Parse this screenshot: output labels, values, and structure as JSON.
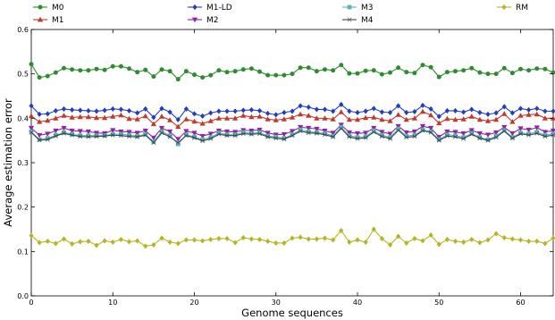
{
  "chart_data": {
    "type": "line",
    "xlabel": "Genome sequences",
    "ylabel": "Average estimation error",
    "xlim": [
      0,
      64
    ],
    "ylim": [
      0.0,
      0.6
    ],
    "xticks": [
      "0",
      "10",
      "20",
      "30",
      "40",
      "50",
      "60"
    ],
    "yticks": [
      "0.0",
      "0.1",
      "0.2",
      "0.3",
      "0.4",
      "0.5",
      "0.6"
    ],
    "legend": "top",
    "x": [
      0,
      1,
      2,
      3,
      4,
      5,
      6,
      7,
      8,
      9,
      10,
      11,
      12,
      13,
      14,
      15,
      16,
      17,
      18,
      19,
      20,
      21,
      22,
      23,
      24,
      25,
      26,
      27,
      28,
      29,
      30,
      31,
      32,
      33,
      34,
      35,
      36,
      37,
      38,
      39,
      40,
      41,
      42,
      43,
      44,
      45,
      46,
      47,
      48,
      49,
      50,
      51,
      52,
      53,
      54,
      55,
      56,
      57,
      58,
      59,
      60,
      61,
      62,
      63,
      64
    ],
    "series": [
      {
        "name": "M0",
        "color": "#2e8b2e",
        "marker": "circle",
        "values": [
          0.522,
          0.492,
          0.495,
          0.503,
          0.513,
          0.51,
          0.508,
          0.508,
          0.511,
          0.509,
          0.517,
          0.517,
          0.512,
          0.504,
          0.509,
          0.494,
          0.51,
          0.506,
          0.488,
          0.506,
          0.498,
          0.492,
          0.497,
          0.508,
          0.504,
          0.506,
          0.51,
          0.512,
          0.505,
          0.497,
          0.497,
          0.497,
          0.5,
          0.514,
          0.514,
          0.506,
          0.51,
          0.508,
          0.52,
          0.501,
          0.501,
          0.507,
          0.508,
          0.499,
          0.503,
          0.514,
          0.504,
          0.502,
          0.52,
          0.515,
          0.493,
          0.504,
          0.506,
          0.508,
          0.513,
          0.503,
          0.5,
          0.5,
          0.513,
          0.502,
          0.511,
          0.508,
          0.512,
          0.511,
          0.503
        ]
      },
      {
        "name": "M1",
        "color": "#c0392b",
        "marker": "triangle",
        "values": [
          0.405,
          0.392,
          0.395,
          0.4,
          0.406,
          0.402,
          0.403,
          0.403,
          0.401,
          0.401,
          0.404,
          0.407,
          0.399,
          0.398,
          0.405,
          0.387,
          0.404,
          0.396,
          0.381,
          0.398,
          0.393,
          0.388,
          0.394,
          0.4,
          0.4,
          0.4,
          0.406,
          0.403,
          0.404,
          0.398,
          0.396,
          0.398,
          0.402,
          0.409,
          0.406,
          0.4,
          0.4,
          0.398,
          0.414,
          0.397,
          0.397,
          0.401,
          0.402,
          0.397,
          0.394,
          0.408,
          0.397,
          0.4,
          0.415,
          0.407,
          0.389,
          0.399,
          0.397,
          0.398,
          0.404,
          0.397,
          0.394,
          0.397,
          0.41,
          0.392,
          0.406,
          0.408,
          0.409,
          0.4,
          0.4
        ]
      },
      {
        "name": "M1-LD",
        "color": "#1f3fbf",
        "marker": "diamond",
        "values": [
          0.428,
          0.409,
          0.41,
          0.417,
          0.421,
          0.419,
          0.418,
          0.417,
          0.416,
          0.418,
          0.421,
          0.42,
          0.417,
          0.412,
          0.421,
          0.402,
          0.422,
          0.414,
          0.397,
          0.421,
          0.41,
          0.405,
          0.412,
          0.416,
          0.416,
          0.416,
          0.418,
          0.419,
          0.417,
          0.411,
          0.408,
          0.413,
          0.416,
          0.428,
          0.425,
          0.42,
          0.42,
          0.416,
          0.431,
          0.416,
          0.413,
          0.416,
          0.422,
          0.414,
          0.413,
          0.428,
          0.413,
          0.415,
          0.429,
          0.421,
          0.404,
          0.417,
          0.417,
          0.414,
          0.42,
          0.413,
          0.409,
          0.412,
          0.426,
          0.412,
          0.422,
          0.419,
          0.422,
          0.416,
          0.416
        ]
      },
      {
        "name": "M2",
        "color": "#8e24aa",
        "marker": "triangle-down",
        "values": [
          0.378,
          0.362,
          0.365,
          0.372,
          0.378,
          0.372,
          0.371,
          0.37,
          0.367,
          0.366,
          0.373,
          0.37,
          0.369,
          0.367,
          0.372,
          0.356,
          0.378,
          0.37,
          0.353,
          0.371,
          0.367,
          0.36,
          0.365,
          0.372,
          0.37,
          0.369,
          0.373,
          0.372,
          0.374,
          0.367,
          0.363,
          0.364,
          0.371,
          0.38,
          0.378,
          0.376,
          0.372,
          0.367,
          0.385,
          0.368,
          0.366,
          0.367,
          0.378,
          0.369,
          0.365,
          0.382,
          0.368,
          0.37,
          0.382,
          0.378,
          0.358,
          0.37,
          0.369,
          0.366,
          0.373,
          0.366,
          0.363,
          0.368,
          0.38,
          0.366,
          0.377,
          0.374,
          0.379,
          0.369,
          0.372
        ]
      },
      {
        "name": "M3",
        "color": "#5bb5b5",
        "marker": "square",
        "values": [
          0.37,
          0.352,
          0.355,
          0.362,
          0.368,
          0.364,
          0.361,
          0.361,
          0.361,
          0.361,
          0.364,
          0.364,
          0.362,
          0.36,
          0.364,
          0.347,
          0.37,
          0.361,
          0.342,
          0.363,
          0.358,
          0.352,
          0.357,
          0.367,
          0.363,
          0.363,
          0.368,
          0.366,
          0.368,
          0.36,
          0.358,
          0.355,
          0.363,
          0.374,
          0.37,
          0.368,
          0.366,
          0.36,
          0.38,
          0.361,
          0.357,
          0.359,
          0.372,
          0.362,
          0.357,
          0.376,
          0.36,
          0.362,
          0.374,
          0.37,
          0.352,
          0.363,
          0.361,
          0.357,
          0.366,
          0.357,
          0.352,
          0.36,
          0.373,
          0.357,
          0.367,
          0.365,
          0.369,
          0.362,
          0.365
        ]
      },
      {
        "name": "M4",
        "color": "#37474f",
        "marker": "x",
        "values": [
          0.368,
          0.351,
          0.352,
          0.36,
          0.366,
          0.362,
          0.359,
          0.358,
          0.359,
          0.36,
          0.362,
          0.361,
          0.359,
          0.358,
          0.362,
          0.345,
          0.367,
          0.358,
          0.345,
          0.361,
          0.356,
          0.349,
          0.354,
          0.364,
          0.361,
          0.361,
          0.365,
          0.364,
          0.365,
          0.358,
          0.355,
          0.353,
          0.361,
          0.371,
          0.367,
          0.366,
          0.363,
          0.358,
          0.377,
          0.358,
          0.354,
          0.356,
          0.369,
          0.359,
          0.354,
          0.373,
          0.357,
          0.359,
          0.372,
          0.368,
          0.35,
          0.36,
          0.358,
          0.354,
          0.364,
          0.355,
          0.35,
          0.357,
          0.371,
          0.355,
          0.365,
          0.362,
          0.366,
          0.359,
          0.362
        ]
      },
      {
        "name": "RM",
        "color": "#b5b520",
        "marker": "diamond",
        "values": [
          0.136,
          0.12,
          0.123,
          0.118,
          0.128,
          0.117,
          0.122,
          0.123,
          0.114,
          0.124,
          0.121,
          0.127,
          0.122,
          0.124,
          0.112,
          0.115,
          0.13,
          0.121,
          0.118,
          0.126,
          0.126,
          0.124,
          0.127,
          0.129,
          0.129,
          0.12,
          0.131,
          0.128,
          0.127,
          0.123,
          0.119,
          0.119,
          0.13,
          0.132,
          0.128,
          0.128,
          0.13,
          0.126,
          0.147,
          0.121,
          0.126,
          0.121,
          0.15,
          0.129,
          0.115,
          0.134,
          0.119,
          0.129,
          0.124,
          0.137,
          0.116,
          0.127,
          0.123,
          0.121,
          0.127,
          0.12,
          0.126,
          0.14,
          0.131,
          0.128,
          0.126,
          0.123,
          0.123,
          0.118,
          0.13
        ]
      }
    ]
  }
}
